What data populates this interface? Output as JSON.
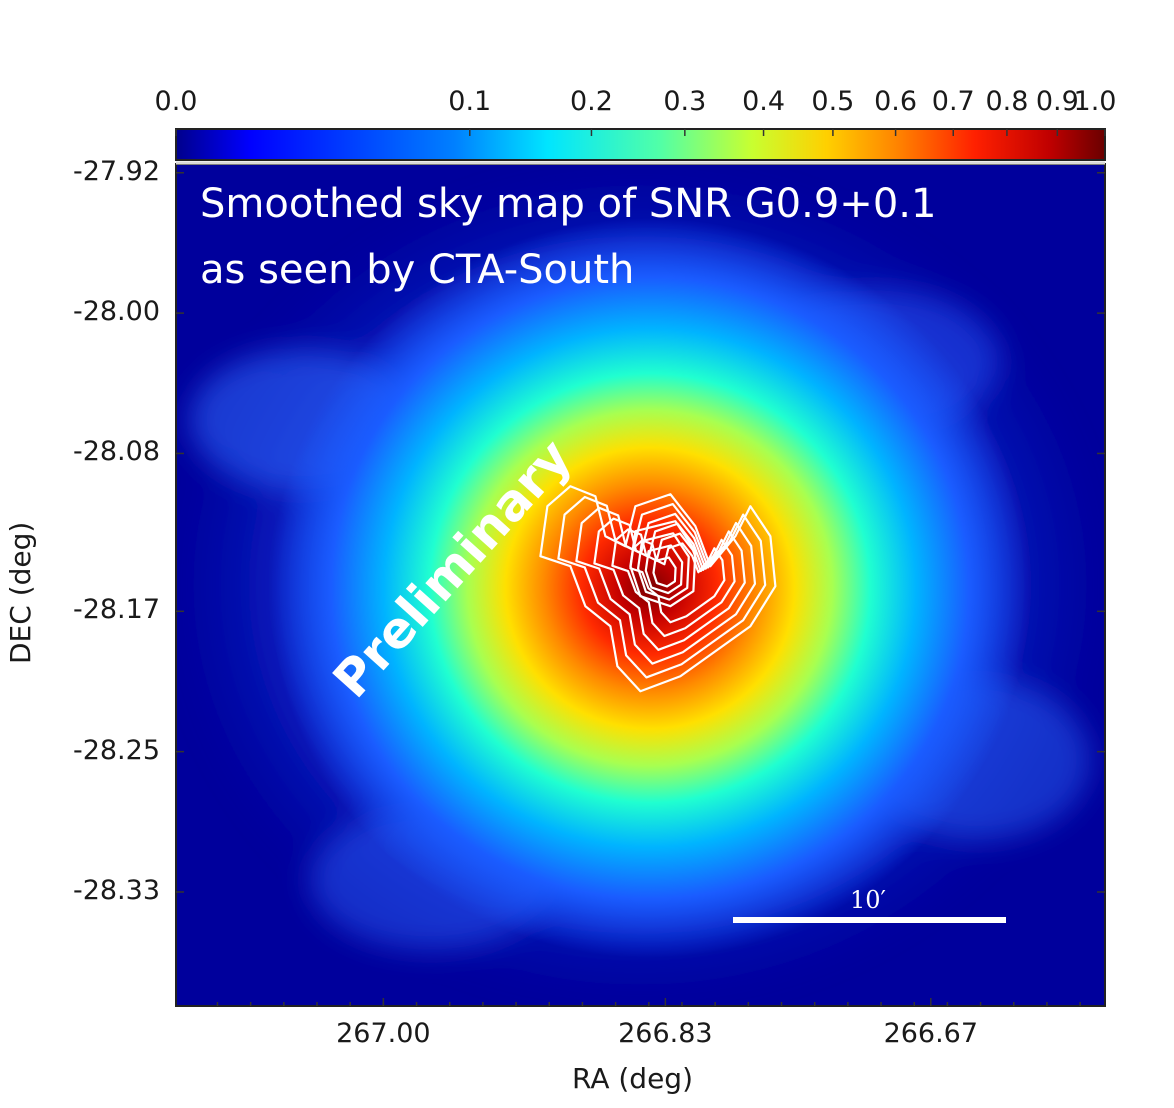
{
  "chart_data": {
    "type": "heatmap",
    "title": "Smoothed sky map of SNR G0.9+0.1 as seen by CTA-South",
    "title_lines": [
      "Smoothed sky map of SNR G0.9+0.1",
      "as seen by CTA-South"
    ],
    "watermark": "Preliminary",
    "xlabel": "RA (deg)",
    "ylabel": "DEC (deg)",
    "x_ticks": [
      "267.00",
      "266.83",
      "266.67"
    ],
    "x_tick_values": [
      267.0,
      266.83,
      266.67
    ],
    "xlim": [
      267.125,
      266.565
    ],
    "y_ticks": [
      "-27.92",
      "-28.00",
      "-28.08",
      "-28.17",
      "-28.25",
      "-28.33"
    ],
    "y_tick_values": [
      -27.92,
      -28.0,
      -28.08,
      -28.17,
      -28.25,
      -28.33
    ],
    "ylim": [
      -28.395,
      -27.915
    ],
    "colorbar": {
      "ticks": [
        "0.0",
        "0.1",
        "0.2",
        "0.3",
        "0.4",
        "0.5",
        "0.6",
        "0.7",
        "0.8",
        "0.9",
        "1.0"
      ],
      "tick_values": [
        0.0,
        0.1,
        0.2,
        0.3,
        0.4,
        0.5,
        0.6,
        0.7,
        0.8,
        0.9,
        1.0
      ],
      "scale": "sqrt",
      "colormap": "jet",
      "range": [
        0.0,
        1.0
      ]
    },
    "source_peak": {
      "ra": 266.83,
      "dec": -28.15,
      "value": 1.0
    },
    "contour_color": "#ffffff",
    "scale_bar": {
      "label": "10′",
      "length_arcmin": 10
    },
    "colors": {
      "background_low": "#00008c",
      "peak": "#7f0000"
    }
  }
}
